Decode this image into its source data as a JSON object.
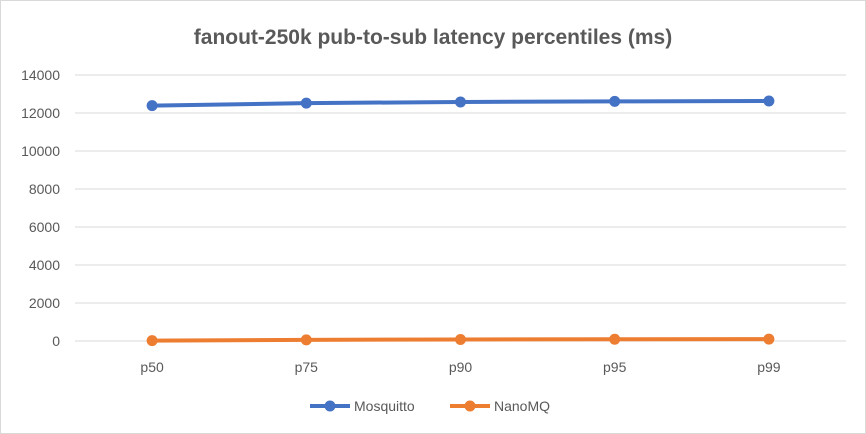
{
  "chart_data": {
    "type": "line",
    "title": "fanout-250k pub-to-sub latency percentiles (ms)",
    "categories": [
      "p50",
      "p75",
      "p90",
      "p95",
      "p99"
    ],
    "series": [
      {
        "name": "Mosquitto",
        "color": "#4472c4",
        "values": [
          12390,
          12520,
          12580,
          12610,
          12630
        ]
      },
      {
        "name": "NanoMQ",
        "color": "#ed7d31",
        "values": [
          20,
          60,
          80,
          90,
          100
        ]
      }
    ],
    "ylim": [
      0,
      14000
    ],
    "yticks": [
      0,
      2000,
      4000,
      6000,
      8000,
      10000,
      12000,
      14000
    ],
    "grid": true,
    "legend": "bottom"
  }
}
